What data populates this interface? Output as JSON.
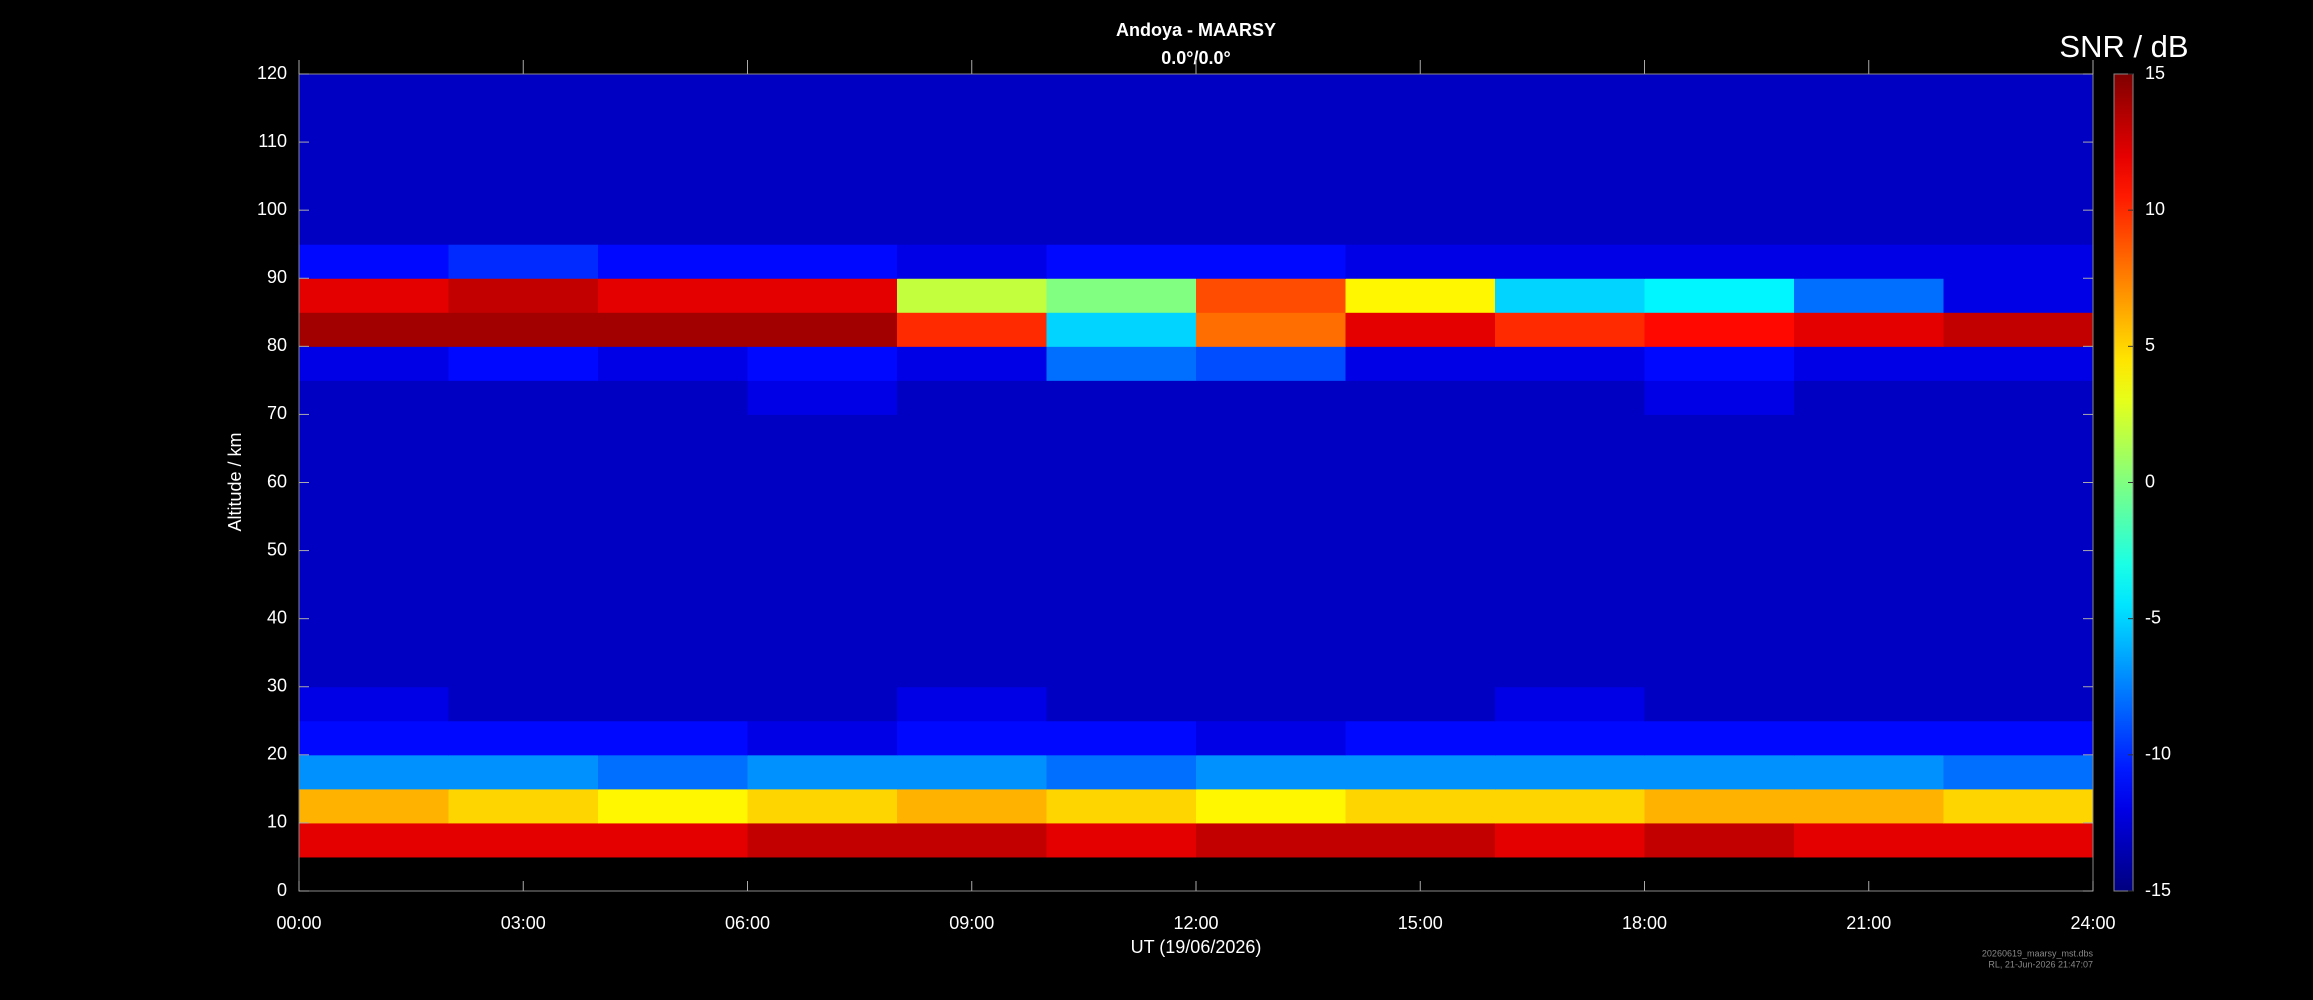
{
  "chart_data": {
    "type": "heatmap",
    "title": "Andoya - MAARSY",
    "subtitle": "0.0°/0.0°",
    "xlabel": "UT (19/06/2026)",
    "ylabel": "Altitude / km",
    "colorbar_label": "SNR / dB",
    "colormap": "jet",
    "footnote": [
      "20260619_maarsy_mst.dbs",
      "RL, 21-Jun-2026 21:47:07"
    ],
    "xlim": [
      0,
      24
    ],
    "xticks": [
      {
        "value": 0,
        "label": "00:00"
      },
      {
        "value": 3,
        "label": "03:00"
      },
      {
        "value": 6,
        "label": "06:00"
      },
      {
        "value": 9,
        "label": "09:00"
      },
      {
        "value": 12,
        "label": "12:00"
      },
      {
        "value": 15,
        "label": "15:00"
      },
      {
        "value": 18,
        "label": "18:00"
      },
      {
        "value": 21,
        "label": "21:00"
      },
      {
        "value": 24,
        "label": "24:00"
      }
    ],
    "ylim": [
      0,
      120
    ],
    "yticks": [
      0,
      10,
      20,
      30,
      40,
      50,
      60,
      70,
      80,
      90,
      100,
      110,
      120
    ],
    "clim": [
      -15,
      15
    ],
    "cticks": [
      -15,
      -10,
      -5,
      0,
      5,
      10,
      15
    ],
    "xbins": [
      0,
      2,
      4,
      6,
      8,
      10,
      12,
      14,
      16,
      18,
      20,
      22,
      24
    ],
    "ybins": [
      0,
      5,
      10,
      15,
      20,
      25,
      30,
      35,
      40,
      45,
      50,
      55,
      60,
      65,
      70,
      75,
      80,
      85,
      90,
      95,
      100,
      105,
      110,
      115,
      120
    ],
    "z": [
      [
        null,
        null,
        null,
        null,
        null,
        null,
        null,
        null,
        null,
        null,
        null,
        null
      ],
      [
        12,
        12,
        12,
        13,
        13,
        12,
        13,
        13,
        12,
        13,
        12,
        12
      ],
      [
        6,
        5,
        4,
        5,
        6,
        5,
        4,
        5,
        5,
        6,
        6,
        5
      ],
      [
        -7,
        -7,
        -8,
        -7,
        -7,
        -8,
        -7,
        -7,
        -7,
        -7,
        -7,
        -8
      ],
      [
        -11,
        -11,
        -11,
        -12,
        -11,
        -11,
        -12,
        -11,
        -11,
        -11,
        -11,
        -11
      ],
      [
        -12,
        -13,
        -13,
        -13,
        -12,
        -13,
        -13,
        -13,
        -12,
        -13,
        -13,
        -13
      ],
      [
        -13,
        -13,
        -13,
        -13,
        -13,
        -13,
        -13,
        -13,
        -13,
        -13,
        -13,
        -13
      ],
      [
        -13,
        -13,
        -13,
        -13,
        -13,
        -13,
        -13,
        -13,
        -13,
        -13,
        -13,
        -13
      ],
      [
        -13,
        -13,
        -13,
        -13,
        -13,
        -13,
        -13,
        -13,
        -13,
        -13,
        -13,
        -13
      ],
      [
        -13,
        -13,
        -13,
        -13,
        -13,
        -13,
        -13,
        -13,
        -13,
        -13,
        -13,
        -13
      ],
      [
        -13,
        -13,
        -13,
        -13,
        -13,
        -13,
        -13,
        -13,
        -13,
        -13,
        -13,
        -13
      ],
      [
        -13,
        -13,
        -13,
        -13,
        -13,
        -13,
        -13,
        -13,
        -13,
        -13,
        -13,
        -13
      ],
      [
        -13,
        -13,
        -13,
        -13,
        -13,
        -13,
        -13,
        -13,
        -13,
        -13,
        -13,
        -13
      ],
      [
        -13,
        -13,
        -13,
        -13,
        -13,
        -13,
        -13,
        -13,
        -13,
        -13,
        -13,
        -13
      ],
      [
        -13,
        -13,
        -13,
        -12,
        -13,
        -13,
        -13,
        -13,
        -13,
        -12,
        -13,
        -13
      ],
      [
        -12,
        -11,
        -12,
        -11,
        -12,
        -8,
        -9,
        -12,
        -12,
        -11,
        -12,
        -12
      ],
      [
        14,
        14,
        14,
        14,
        10,
        -5,
        8,
        12,
        10,
        11,
        12,
        13
      ],
      [
        12,
        13,
        12,
        12,
        2,
        0,
        9,
        4,
        -5,
        -4,
        -8,
        -12
      ],
      [
        -11,
        -10,
        -11,
        -11,
        -12,
        -11,
        -11,
        -12,
        -12,
        -12,
        -12,
        -12
      ],
      [
        -13,
        -13,
        -13,
        -13,
        -13,
        -13,
        -13,
        -13,
        -13,
        -13,
        -13,
        -13
      ],
      [
        -13,
        -13,
        -13,
        -13,
        -13,
        -13,
        -13,
        -13,
        -13,
        -13,
        -13,
        -13
      ],
      [
        -13,
        -13,
        -13,
        -13,
        -13,
        -13,
        -13,
        -13,
        -13,
        -13,
        -13,
        -13
      ],
      [
        -13,
        -13,
        -13,
        -13,
        -13,
        -13,
        -13,
        -13,
        -13,
        -13,
        -13,
        -13
      ],
      [
        -13,
        -13,
        -13,
        -13,
        -13,
        -13,
        -13,
        -13,
        -13,
        -13,
        -13,
        -13
      ]
    ]
  }
}
